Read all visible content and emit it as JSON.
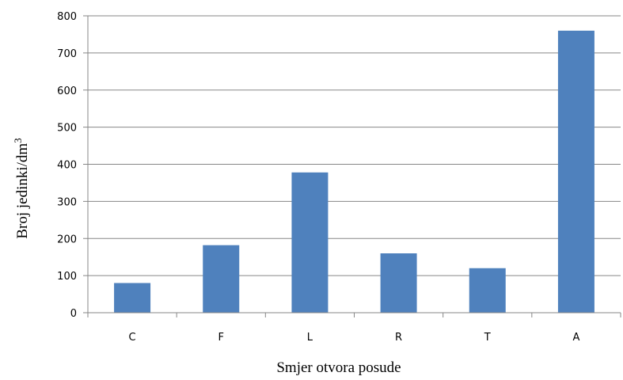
{
  "chart_data": {
    "type": "bar",
    "title": "",
    "xlabel": "Smjer otvora posude",
    "ylabel": "Broj jedinki/dm",
    "ylabel_superscript": "3",
    "categories": [
      "C",
      "F",
      "L",
      "R",
      "T",
      "A"
    ],
    "values": [
      80,
      182,
      378,
      160,
      120,
      760
    ],
    "ylim": [
      0,
      800
    ],
    "yticks": [
      "0",
      "100",
      "200",
      "300",
      "400",
      "500",
      "600",
      "700",
      "800"
    ],
    "grid": true,
    "legend": "none",
    "bar_color": "#4f81bd"
  }
}
